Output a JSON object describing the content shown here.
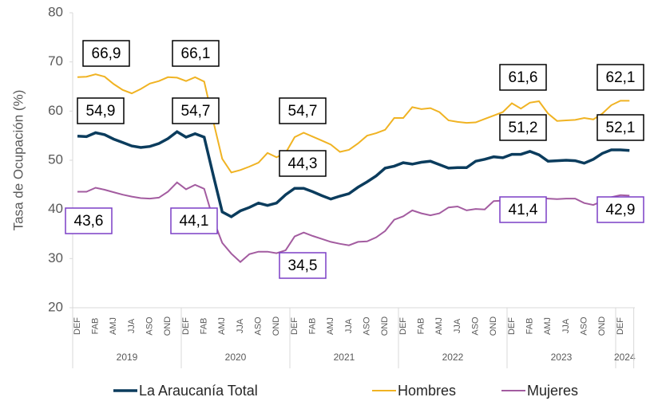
{
  "chart_data": {
    "type": "line",
    "y_label": "Tasa de Ocupación (%)",
    "ylim": [
      20,
      80
    ],
    "yticks": [
      20,
      30,
      40,
      50,
      60,
      70,
      80
    ],
    "categories": [
      "DEF",
      null,
      "FAB",
      null,
      "AMJ",
      null,
      "JJA",
      null,
      "ASO",
      null,
      "OND",
      null,
      "DEF",
      null,
      "FAB",
      null,
      "AMJ",
      null,
      "JJA",
      null,
      "ASO",
      null,
      "OND",
      null,
      "DEF",
      null,
      "FAB",
      null,
      "AMJ",
      null,
      "JJA",
      null,
      "ASO",
      null,
      "OND",
      null,
      "DEF",
      null,
      "FAB",
      null,
      "AMJ",
      null,
      "JJA",
      null,
      "ASO",
      null,
      "OND",
      null,
      "DEF",
      null,
      "FAB",
      null,
      "AMJ",
      null,
      "JJA",
      null,
      "ASO",
      null,
      "OND",
      null,
      "DEF",
      null
    ],
    "year_groups": [
      {
        "label": "2019",
        "count": 12
      },
      {
        "label": "2020",
        "count": 12
      },
      {
        "label": "2021",
        "count": 12
      },
      {
        "label": "2022",
        "count": 12
      },
      {
        "label": "2023",
        "count": 12
      },
      {
        "label": "2024",
        "count": 2
      }
    ],
    "series": [
      {
        "name": "La Araucanía Total",
        "color": "#0b3c5d",
        "box_color": "#000000",
        "values": [
          54.9,
          54.8,
          55.6,
          55.2,
          54.3,
          53.6,
          52.9,
          52.6,
          52.8,
          53.4,
          54.4,
          55.8,
          54.7,
          55.4,
          54.7,
          47,
          39.5,
          38.5,
          39.7,
          40.4,
          41.3,
          40.8,
          41.3,
          43,
          44.3,
          44.3,
          43.6,
          42.8,
          42.1,
          42.7,
          43.2,
          44.5,
          45.6,
          46.8,
          48.4,
          48.8,
          49.5,
          49.2,
          49.6,
          49.8,
          49.1,
          48.4,
          48.5,
          48.5,
          49.8,
          50.2,
          50.7,
          50.5,
          51.2,
          51.2,
          51.8,
          51.1,
          49.8,
          49.9,
          50,
          49.9,
          49.4,
          50.2,
          51.4,
          52.1,
          52.1,
          52.0
        ],
        "value_labels": [
          "54,9",
          null,
          null,
          null,
          null,
          null,
          null,
          null,
          null,
          null,
          null,
          null,
          "54,7",
          null,
          null,
          null,
          null,
          null,
          null,
          null,
          null,
          null,
          null,
          null,
          "44,3",
          null,
          null,
          null,
          null,
          null,
          null,
          null,
          null,
          null,
          null,
          null,
          null,
          null,
          null,
          null,
          null,
          null,
          null,
          null,
          null,
          null,
          null,
          null,
          "51,2",
          null,
          null,
          null,
          null,
          null,
          null,
          null,
          null,
          null,
          null,
          null,
          "52,1",
          null
        ]
      },
      {
        "name": "Hombres",
        "color": "#f0b323",
        "box_color": "#000000",
        "values": [
          66.9,
          67,
          67.5,
          67,
          65.5,
          64.3,
          63.6,
          64.5,
          65.6,
          66.1,
          66.9,
          66.8,
          66.1,
          66.9,
          66,
          58,
          50.3,
          47.5,
          48,
          48.7,
          49.5,
          51.5,
          50.6,
          51.5,
          54.7,
          55.6,
          54.8,
          54,
          53.2,
          51.7,
          52.1,
          53.4,
          55,
          55.5,
          56.2,
          58.6,
          58.6,
          60.8,
          60.4,
          60.6,
          59.8,
          58.1,
          57.8,
          57.6,
          57.7,
          58.4,
          59.1,
          59.8,
          61.6,
          60.5,
          61.7,
          62,
          59.5,
          58,
          58.1,
          58.2,
          58.6,
          58.3,
          59.5,
          61.2,
          62.1,
          62.1
        ],
        "value_labels": [
          "66,9",
          null,
          null,
          null,
          null,
          null,
          null,
          null,
          null,
          null,
          null,
          null,
          "66,1",
          null,
          null,
          null,
          null,
          null,
          null,
          null,
          null,
          null,
          null,
          null,
          "54,7",
          null,
          null,
          null,
          null,
          null,
          null,
          null,
          null,
          null,
          null,
          null,
          null,
          null,
          null,
          null,
          null,
          null,
          null,
          null,
          null,
          null,
          null,
          null,
          "61,6",
          null,
          null,
          null,
          null,
          null,
          null,
          null,
          null,
          null,
          null,
          null,
          "62,1",
          null
        ]
      },
      {
        "name": "Mujeres",
        "color": "#a35ca0",
        "box_color": "#7b3fc6",
        "values": [
          43.6,
          43.6,
          44.4,
          44,
          43.5,
          43,
          42.6,
          42.3,
          42.2,
          42.4,
          43.6,
          45.5,
          44.1,
          45,
          44.2,
          38,
          33.2,
          31,
          29.3,
          30.9,
          31.4,
          31.4,
          31.1,
          31.7,
          34.5,
          35.3,
          34.6,
          34,
          33.4,
          33,
          32.7,
          33.4,
          33.5,
          34.3,
          35.6,
          37.9,
          38.6,
          39.8,
          39.2,
          38.8,
          39.2,
          40.4,
          40.6,
          39.8,
          40.1,
          40,
          41.7,
          41.8,
          41.4,
          41.4,
          41.5,
          42.3,
          42.2,
          42.1,
          42.2,
          42.2,
          41.3,
          40.9,
          41.7,
          42.5,
          42.9,
          42.8
        ],
        "value_labels": [
          "43,6",
          null,
          null,
          null,
          null,
          null,
          null,
          null,
          null,
          null,
          null,
          null,
          "44,1",
          null,
          null,
          null,
          null,
          null,
          null,
          null,
          null,
          null,
          null,
          null,
          "34,5",
          null,
          null,
          null,
          null,
          null,
          null,
          null,
          null,
          null,
          null,
          null,
          null,
          null,
          null,
          null,
          null,
          null,
          null,
          null,
          null,
          null,
          null,
          null,
          "41,4",
          null,
          null,
          null,
          null,
          null,
          null,
          null,
          null,
          null,
          null,
          null,
          "42,9",
          null
        ]
      }
    ]
  }
}
